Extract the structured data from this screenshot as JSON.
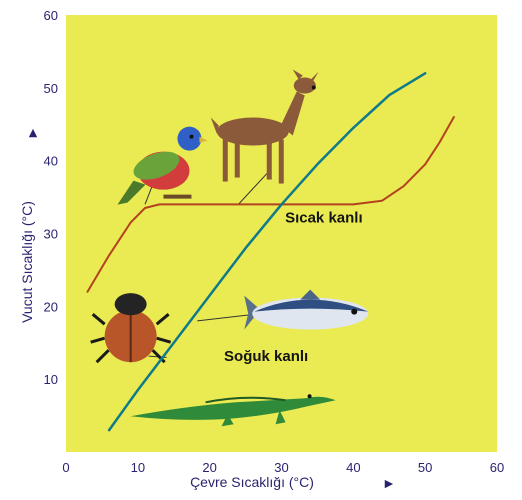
{
  "chart_data": {
    "type": "line",
    "title": "",
    "xlabel": "Çevre Sıcaklığı (°C)",
    "ylabel": "Vucut Sıcaklığı (°C)",
    "xlim": [
      0,
      60
    ],
    "ylim": [
      0,
      60
    ],
    "xticks": [
      "0",
      "10",
      "20",
      "30",
      "40",
      "50",
      "60"
    ],
    "yticks": [
      "10",
      "20",
      "30",
      "40",
      "50",
      "60"
    ],
    "grid": false,
    "background": "#eaea52",
    "series": [
      {
        "name": "Sıcak kanlı",
        "color": "#b3421f",
        "x": [
          3,
          6,
          9,
          11,
          13,
          20,
          30,
          40,
          44,
          47,
          50,
          52,
          54
        ],
        "y": [
          22,
          27,
          31.5,
          33.5,
          34,
          34,
          34,
          34,
          34.5,
          36.5,
          39.5,
          42.5,
          46
        ]
      },
      {
        "name": "Soğuk kanlı",
        "color": "#0f7a8a",
        "x": [
          6,
          10,
          15,
          20,
          25,
          30,
          35,
          40,
          45,
          50
        ],
        "y": [
          3,
          8.5,
          15,
          21.5,
          28,
          34,
          39.5,
          44.5,
          49,
          52
        ]
      }
    ],
    "animals": [
      {
        "name": "bird-illustration",
        "x": 8,
        "y": 40,
        "pointer_x": 11,
        "pointer_y": 34
      },
      {
        "name": "deer-illustration",
        "x": 26,
        "y": 44,
        "pointer_x": 24,
        "pointer_y": 34
      },
      {
        "name": "beetle-illustration",
        "x": 9,
        "y": 17,
        "pointer_x": 14,
        "pointer_y": 13
      },
      {
        "name": "fish-illustration",
        "x": 34,
        "y": 19,
        "pointer_x": 18,
        "pointer_y": 18
      },
      {
        "name": "crocodile-illustration",
        "x": 25,
        "y": 6,
        "pointer_x": 14,
        "pointer_y": 10
      }
    ]
  }
}
